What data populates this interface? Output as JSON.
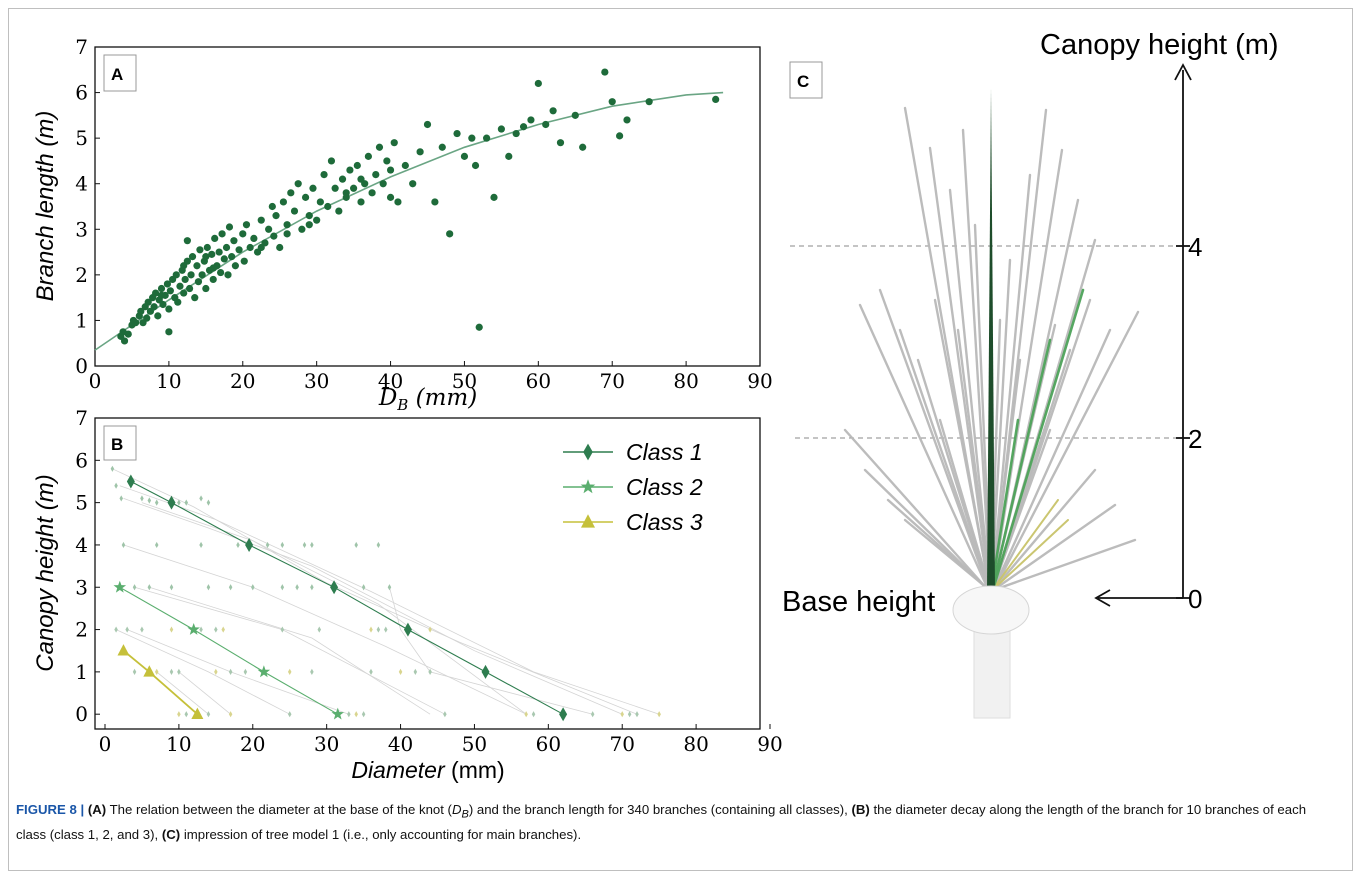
{
  "caption": {
    "figure_label": "FIGURE 8 |",
    "segments": [
      {
        "bold": true,
        "text": "(A)"
      },
      {
        "bold": false,
        "text": " The relation between the diameter at the base of the knot ("
      },
      {
        "bold": false,
        "italic": true,
        "text": "D"
      },
      {
        "bold": false,
        "italic": true,
        "sub": true,
        "text": "B"
      },
      {
        "bold": false,
        "text": ") and the branch length for 340 branches (containing all classes), "
      },
      {
        "bold": true,
        "text": "(B)"
      },
      {
        "bold": false,
        "text": " the diameter decay along the length of the branch for 10 branches of each class (class 1, 2, and 3), "
      },
      {
        "bold": true,
        "text": "(C)"
      },
      {
        "bold": false,
        "text": " impression of tree model 1 (i.e., only accounting for main branches)."
      }
    ]
  },
  "chart_data": [
    {
      "panel": "A",
      "type": "scatter",
      "xlabel_main": "D",
      "xlabel_sub": "B",
      "xlabel_unit": " (mm)",
      "ylabel": "Branch length (m)",
      "xlim": [
        0,
        90
      ],
      "ylim": [
        0,
        7
      ],
      "xticks": [
        0,
        10,
        20,
        30,
        40,
        50,
        60,
        70,
        80,
        90
      ],
      "yticks": [
        0,
        1,
        2,
        3,
        4,
        5,
        6,
        7
      ],
      "grid": false,
      "colors": {
        "point": "#1e6b3a",
        "fit": "#6aa584"
      },
      "points": [
        [
          3.5,
          0.65
        ],
        [
          3.8,
          0.75
        ],
        [
          4.0,
          0.55
        ],
        [
          4.5,
          0.7
        ],
        [
          5.0,
          0.9
        ],
        [
          5.2,
          1.0
        ],
        [
          5.5,
          0.95
        ],
        [
          6.0,
          1.1
        ],
        [
          6.2,
          1.2
        ],
        [
          6.5,
          0.95
        ],
        [
          6.8,
          1.3
        ],
        [
          7.0,
          1.05
        ],
        [
          7.2,
          1.4
        ],
        [
          7.5,
          1.2
        ],
        [
          7.8,
          1.5
        ],
        [
          8.0,
          1.3
        ],
        [
          8.2,
          1.6
        ],
        [
          8.5,
          1.1
        ],
        [
          8.7,
          1.45
        ],
        [
          9.0,
          1.7
        ],
        [
          9.2,
          1.35
        ],
        [
          9.5,
          1.55
        ],
        [
          9.8,
          1.8
        ],
        [
          10.0,
          1.25
        ],
        [
          10.0,
          0.75
        ],
        [
          10.2,
          1.65
        ],
        [
          10.5,
          1.9
        ],
        [
          10.8,
          1.5
        ],
        [
          11.0,
          2.0
        ],
        [
          11.2,
          1.4
        ],
        [
          11.5,
          1.75
        ],
        [
          11.8,
          2.1
        ],
        [
          12.0,
          1.6
        ],
        [
          12.2,
          1.9
        ],
        [
          12.5,
          2.3
        ],
        [
          12.5,
          2.75
        ],
        [
          12.8,
          1.7
        ],
        [
          13.0,
          2.0
        ],
        [
          13.2,
          2.4
        ],
        [
          13.5,
          1.5
        ],
        [
          13.8,
          2.2
        ],
        [
          14.0,
          1.85
        ],
        [
          14.2,
          2.55
        ],
        [
          14.5,
          2.0
        ],
        [
          14.8,
          2.3
        ],
        [
          15.0,
          1.7
        ],
        [
          15.2,
          2.6
        ],
        [
          15.5,
          2.1
        ],
        [
          15.8,
          2.45
        ],
        [
          16.0,
          1.9
        ],
        [
          16.2,
          2.8
        ],
        [
          16.5,
          2.2
        ],
        [
          16.8,
          2.5
        ],
        [
          17.0,
          2.05
        ],
        [
          17.2,
          2.9
        ],
        [
          17.5,
          2.35
        ],
        [
          17.8,
          2.6
        ],
        [
          18.0,
          2.0
        ],
        [
          18.2,
          3.05
        ],
        [
          18.5,
          2.4
        ],
        [
          18.8,
          2.75
        ],
        [
          19.0,
          2.2
        ],
        [
          19.5,
          2.55
        ],
        [
          20.0,
          2.9
        ],
        [
          20.2,
          2.3
        ],
        [
          20.5,
          3.1
        ],
        [
          21.0,
          2.6
        ],
        [
          21.5,
          2.8
        ],
        [
          22.0,
          2.5
        ],
        [
          22.5,
          3.2
        ],
        [
          23.0,
          2.7
        ],
        [
          23.5,
          3.0
        ],
        [
          24.0,
          3.5
        ],
        [
          24.2,
          2.85
        ],
        [
          24.5,
          3.3
        ],
        [
          25.0,
          2.6
        ],
        [
          25.5,
          3.6
        ],
        [
          26.0,
          3.1
        ],
        [
          26.5,
          3.8
        ],
        [
          27.0,
          3.4
        ],
        [
          27.5,
          4.0
        ],
        [
          28.0,
          3.0
        ],
        [
          28.5,
          3.7
        ],
        [
          29.0,
          3.3
        ],
        [
          29.5,
          3.9
        ],
        [
          30.0,
          3.2
        ],
        [
          30.5,
          3.6
        ],
        [
          31.0,
          4.2
        ],
        [
          31.5,
          3.5
        ],
        [
          32.0,
          4.5
        ],
        [
          32.5,
          3.9
        ],
        [
          33.0,
          3.4
        ],
        [
          33.5,
          4.1
        ],
        [
          34.0,
          3.7
        ],
        [
          34.5,
          4.3
        ],
        [
          35.0,
          3.9
        ],
        [
          35.5,
          4.4
        ],
        [
          36.0,
          3.6
        ],
        [
          36.5,
          4.0
        ],
        [
          37.0,
          4.6
        ],
        [
          37.5,
          3.8
        ],
        [
          38.0,
          4.2
        ],
        [
          38.5,
          4.8
        ],
        [
          39.0,
          4.0
        ],
        [
          39.5,
          4.5
        ],
        [
          40.0,
          3.7
        ],
        [
          40.5,
          4.9
        ],
        [
          41.0,
          3.6
        ],
        [
          42.0,
          4.4
        ],
        [
          43.0,
          4.0
        ],
        [
          44.0,
          4.7
        ],
        [
          45.0,
          5.3
        ],
        [
          46.0,
          3.6
        ],
        [
          47.0,
          4.8
        ],
        [
          48.0,
          2.9
        ],
        [
          49.0,
          5.1
        ],
        [
          50.0,
          4.6
        ],
        [
          51.0,
          5.0
        ],
        [
          51.5,
          4.4
        ],
        [
          52.0,
          0.85
        ],
        [
          53.0,
          5.0
        ],
        [
          54.0,
          3.7
        ],
        [
          55.0,
          5.2
        ],
        [
          56.0,
          4.6
        ],
        [
          57.0,
          5.1
        ],
        [
          58.0,
          5.25
        ],
        [
          59.0,
          5.4
        ],
        [
          60.0,
          6.2
        ],
        [
          61.0,
          5.3
        ],
        [
          62.0,
          5.6
        ],
        [
          63.0,
          4.9
        ],
        [
          65.0,
          5.5
        ],
        [
          66.0,
          4.8
        ],
        [
          69.0,
          6.45
        ],
        [
          70.0,
          5.8
        ],
        [
          71.0,
          5.05
        ],
        [
          72.0,
          5.4
        ],
        [
          75.0,
          5.8
        ],
        [
          84.0,
          5.85
        ],
        [
          22.5,
          2.6
        ],
        [
          26.0,
          2.9
        ],
        [
          29.0,
          3.1
        ],
        [
          34.0,
          3.8
        ],
        [
          36.0,
          4.1
        ],
        [
          40.0,
          4.3
        ],
        [
          15.0,
          2.4
        ],
        [
          12.0,
          2.2
        ],
        [
          9.0,
          1.55
        ],
        [
          16.0,
          2.15
        ]
      ],
      "fit": [
        [
          0,
          0.35
        ],
        [
          10,
          1.45
        ],
        [
          20,
          2.5
        ],
        [
          30,
          3.4
        ],
        [
          40,
          4.15
        ],
        [
          50,
          4.8
        ],
        [
          60,
          5.3
        ],
        [
          70,
          5.7
        ],
        [
          80,
          5.95
        ],
        [
          85,
          6.0
        ]
      ]
    },
    {
      "panel": "B",
      "type": "line",
      "xlabel": "Diameter (mm)",
      "ylabel": "Canopy height (m)",
      "xlim": [
        0,
        90
      ],
      "ylim": [
        0,
        7
      ],
      "xticks": [
        0,
        10,
        20,
        30,
        40,
        50,
        60,
        70,
        80,
        90
      ],
      "yticks": [
        0,
        1,
        2,
        3,
        4,
        5,
        6,
        7
      ],
      "grid": false,
      "legend_placement": "top-right",
      "series": [
        {
          "name": "Class 1",
          "color": "#2e7d4f",
          "marker": "diamond",
          "points": [
            [
              3.5,
              5.5
            ],
            [
              9,
              5.0
            ],
            [
              19.5,
              4.0
            ],
            [
              31,
              3.0
            ],
            [
              41,
              2.0
            ],
            [
              51.5,
              1.0
            ],
            [
              62,
              0.0
            ]
          ]
        },
        {
          "name": "Class 2",
          "color": "#5aae6e",
          "marker": "star",
          "points": [
            [
              2,
              3.0
            ],
            [
              12,
              2.0
            ],
            [
              21.5,
              1.0
            ],
            [
              31.5,
              0.0
            ]
          ]
        },
        {
          "name": "Class 3",
          "color": "#c5c03a",
          "marker": "triangle",
          "points": [
            [
              2.5,
              1.5
            ],
            [
              6,
              1.0
            ],
            [
              12.5,
              0.0
            ]
          ]
        }
      ],
      "background_markers": [
        [
          1,
          5.8
        ],
        [
          1.5,
          5.4
        ],
        [
          2.2,
          5.1
        ],
        [
          5,
          5.1
        ],
        [
          6,
          5.05
        ],
        [
          7,
          5.0
        ],
        [
          10,
          5.0
        ],
        [
          11,
          5.0
        ],
        [
          13,
          5.1
        ],
        [
          14,
          5.0
        ],
        [
          2.5,
          4.0
        ],
        [
          7,
          4.0
        ],
        [
          13,
          4.0
        ],
        [
          18,
          4.0
        ],
        [
          22,
          4.0
        ],
        [
          24,
          4.0
        ],
        [
          27,
          4.0
        ],
        [
          28,
          4.0
        ],
        [
          34,
          4.0
        ],
        [
          37,
          4.0
        ],
        [
          38.5,
          3.0
        ],
        [
          4,
          3.0
        ],
        [
          6,
          3.0
        ],
        [
          9,
          3.0
        ],
        [
          14,
          3.0
        ],
        [
          17,
          3.0
        ],
        [
          20,
          3.0
        ],
        [
          24,
          3.0
        ],
        [
          26,
          3.0
        ],
        [
          28,
          3.0
        ],
        [
          35,
          3.0
        ],
        [
          3,
          2.0
        ],
        [
          5,
          2.0
        ],
        [
          9,
          2.0
        ],
        [
          13,
          2.0
        ],
        [
          15,
          2.0
        ],
        [
          16,
          2.0
        ],
        [
          24,
          2.0
        ],
        [
          29,
          2.0
        ],
        [
          36,
          2.0
        ],
        [
          37,
          2.0
        ],
        [
          38,
          2.0
        ],
        [
          44,
          2.0
        ],
        [
          1.5,
          2.0
        ],
        [
          4,
          1.0
        ],
        [
          7,
          1.0
        ],
        [
          9,
          1.0
        ],
        [
          10,
          1.0
        ],
        [
          15,
          1.0
        ],
        [
          17,
          1.0
        ],
        [
          19,
          1.0
        ],
        [
          25,
          1.0
        ],
        [
          28,
          1.0
        ],
        [
          36,
          1.0
        ],
        [
          40,
          1.0
        ],
        [
          42,
          1.0
        ],
        [
          44,
          1.0
        ],
        [
          10,
          0.0
        ],
        [
          11,
          0.0
        ],
        [
          14,
          0.0
        ],
        [
          17,
          0.0
        ],
        [
          25,
          0.0
        ],
        [
          33,
          0.0
        ],
        [
          34,
          0.0
        ],
        [
          35,
          0.0
        ],
        [
          46,
          0.0
        ],
        [
          57,
          0.0
        ],
        [
          58,
          0.0
        ],
        [
          66,
          0.0
        ],
        [
          70,
          0.0
        ],
        [
          71,
          0.0
        ],
        [
          72,
          0.0
        ],
        [
          75,
          0.0
        ]
      ]
    },
    {
      "panel": "C",
      "type": "diagram",
      "axis_title": "Canopy height (m)",
      "base_label": "Base height",
      "ticks": [
        0,
        2,
        4
      ],
      "colors": {
        "grey_branch": "#b9b9b9",
        "main_branch": "#1e4d2b",
        "green_branch": "#4ea35a",
        "yellow_branch": "#c9c46a"
      }
    }
  ]
}
